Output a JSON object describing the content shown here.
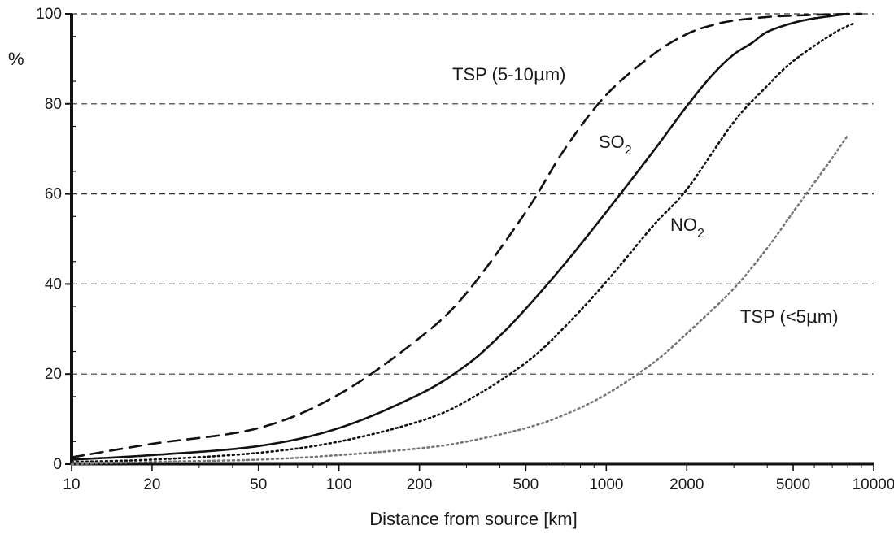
{
  "chart_data": {
    "type": "line",
    "x_scale": "log",
    "xlabel": "Distance from source [km]",
    "ylabel": "%",
    "xlim": [
      10,
      10000
    ],
    "ylim": [
      0,
      100
    ],
    "x_ticks": [
      10,
      20,
      50,
      100,
      200,
      500,
      1000,
      2000,
      5000,
      10000
    ],
    "y_ticks": [
      0,
      20,
      40,
      60,
      80,
      100
    ],
    "grid": "horizontal dashed",
    "series": [
      {
        "name": "TSP (5-10μm)",
        "label_main": "TSP (5-10",
        "label_mu": "μ",
        "label_tail": "m)",
        "style": "dashed",
        "color": "#111111",
        "x": [
          10,
          20,
          50,
          100,
          200,
          300,
          500,
          700,
          1000,
          1500,
          2000,
          2500,
          3000,
          4000,
          5000,
          7000,
          9000
        ],
        "y": [
          1.5,
          4.5,
          8,
          15.5,
          28,
          38,
          56,
          70,
          82,
          91,
          95.5,
          97.5,
          98.5,
          99.3,
          99.6,
          99.9,
          100
        ]
      },
      {
        "name": "SO2",
        "label_main": "SO",
        "label_sub": "2",
        "style": "solid",
        "color": "#111111",
        "x": [
          10,
          20,
          50,
          100,
          200,
          300,
          400,
          500,
          700,
          1000,
          1500,
          2000,
          2500,
          3000,
          3500,
          4000,
          5000,
          6000,
          8000
        ],
        "y": [
          1,
          2,
          4,
          8,
          15.5,
          22,
          28.5,
          34.5,
          44.5,
          56,
          69.5,
          79.5,
          86.5,
          91,
          93.5,
          96,
          98,
          99,
          100
        ]
      },
      {
        "name": "NO2",
        "label_main": "NO",
        "label_sub": "2",
        "style": "dotted",
        "color": "#111111",
        "x": [
          10,
          20,
          50,
          100,
          200,
          300,
          500,
          700,
          1000,
          1500,
          2000,
          3000,
          4000,
          5000,
          7000,
          8500
        ],
        "y": [
          0.5,
          1,
          2.5,
          5,
          9.5,
          14,
          22.5,
          30.5,
          40.5,
          53,
          61,
          76,
          84,
          89.5,
          95.5,
          98
        ]
      },
      {
        "name": "TSP (<5μm)",
        "label_main": "TSP (<5",
        "label_mu": "μ",
        "label_tail": "m)",
        "style": "dotted",
        "color": "#777777",
        "x": [
          10,
          20,
          50,
          100,
          200,
          300,
          500,
          700,
          1000,
          1500,
          2000,
          3000,
          4000,
          5000,
          6000,
          7000,
          8000
        ],
        "y": [
          0,
          0.5,
          1,
          2,
          3.5,
          5,
          8,
          11,
          15.5,
          22.5,
          29,
          39,
          48,
          56,
          62.5,
          68,
          73
        ]
      }
    ]
  }
}
